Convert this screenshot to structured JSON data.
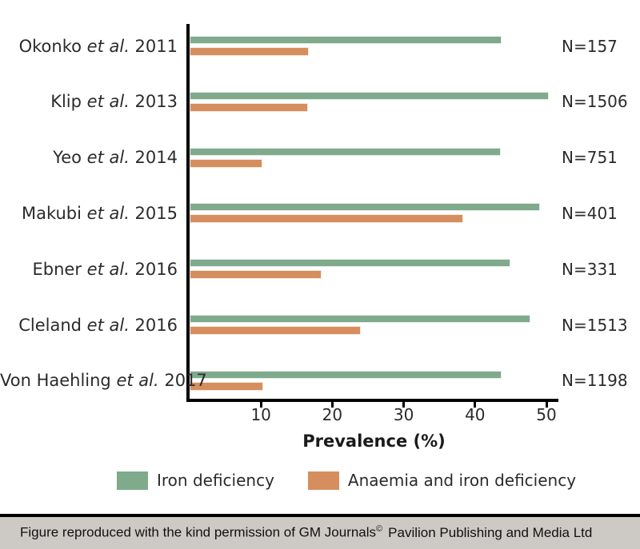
{
  "chart_data": {
    "type": "bar",
    "orientation": "horizontal",
    "xlabel": "Prevalence (%)",
    "xlim": [
      0,
      52
    ],
    "xticks": [
      10,
      20,
      30,
      40,
      50
    ],
    "grid": false,
    "legend_position": "bottom",
    "categories": [
      "Okonko et al. 2011",
      "Klip et al. 2013",
      "Yeo et al. 2014",
      "Makubi et al. 2015",
      "Ebner et al. 2016",
      "Cleland et al. 2016",
      "Von Haehling et al. 2017"
    ],
    "category_parts": [
      {
        "author": "Okonko",
        "etal": "et al.",
        "year": "2011"
      },
      {
        "author": "Klip",
        "etal": "et al.",
        "year": "2013"
      },
      {
        "author": "Yeo",
        "etal": "et al.",
        "year": "2014"
      },
      {
        "author": "Makubi",
        "etal": "et al.",
        "year": "2015"
      },
      {
        "author": "Ebner",
        "etal": "et al.",
        "year": "2016"
      },
      {
        "author": "Cleland",
        "etal": "et al.",
        "year": "2016"
      },
      {
        "author": "Von Haehling",
        "etal": "et al.",
        "year": "2017"
      }
    ],
    "n_labels": [
      "N=157",
      "N=1506",
      "N=751",
      "N=401",
      "N=331",
      "N=1513",
      "N=1198"
    ],
    "series": [
      {
        "name": "Iron deficiency",
        "color": "#7faa8c",
        "values": [
          43.7,
          50.3,
          43.6,
          49.1,
          44.9,
          47.8,
          43.7
        ]
      },
      {
        "name": "Anaemia and iron deficiency",
        "color": "#d68e5e",
        "values": [
          16.7,
          16.6,
          10.2,
          38.3,
          18.5,
          24.0,
          10.3
        ]
      }
    ]
  },
  "footer": {
    "text_before_symbol": "Figure reproduced with the kind permission of GM Journals",
    "symbol": "©",
    "text_after_symbol": "Pavilion Publishing and Media Ltd"
  },
  "colors": {
    "iron_deficiency": "#7faa8c",
    "anaemia_and_iron_deficiency": "#d68e5e",
    "axis": "#000000",
    "footer_background": "#cdcac5"
  }
}
